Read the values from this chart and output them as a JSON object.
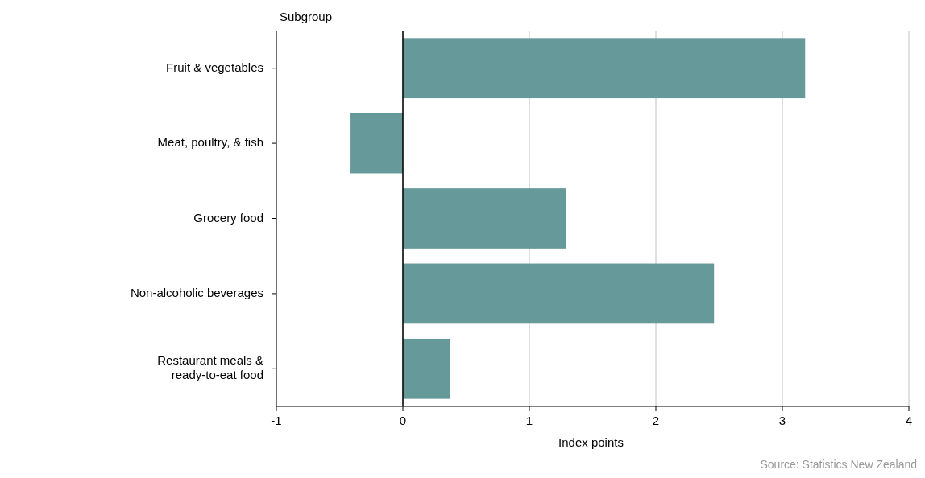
{
  "chart_data": {
    "type": "bar",
    "orientation": "horizontal",
    "ylabel": "Subgroup",
    "xlabel": "Index points",
    "categories": [
      "Fruit & vegetables",
      "Meat, poultry, & fish",
      "Grocery food",
      "Non-alcoholic beverages",
      "Restaurant meals & ready-to-eat food"
    ],
    "values": [
      3.18,
      -0.42,
      1.29,
      2.46,
      0.37
    ],
    "color": "#669999",
    "xlim": [
      -1,
      4
    ],
    "xticks": [
      -1,
      0,
      1,
      2,
      3,
      4
    ],
    "grid": "x",
    "annotations": [
      "Source: Statistics New Zealand"
    ]
  }
}
